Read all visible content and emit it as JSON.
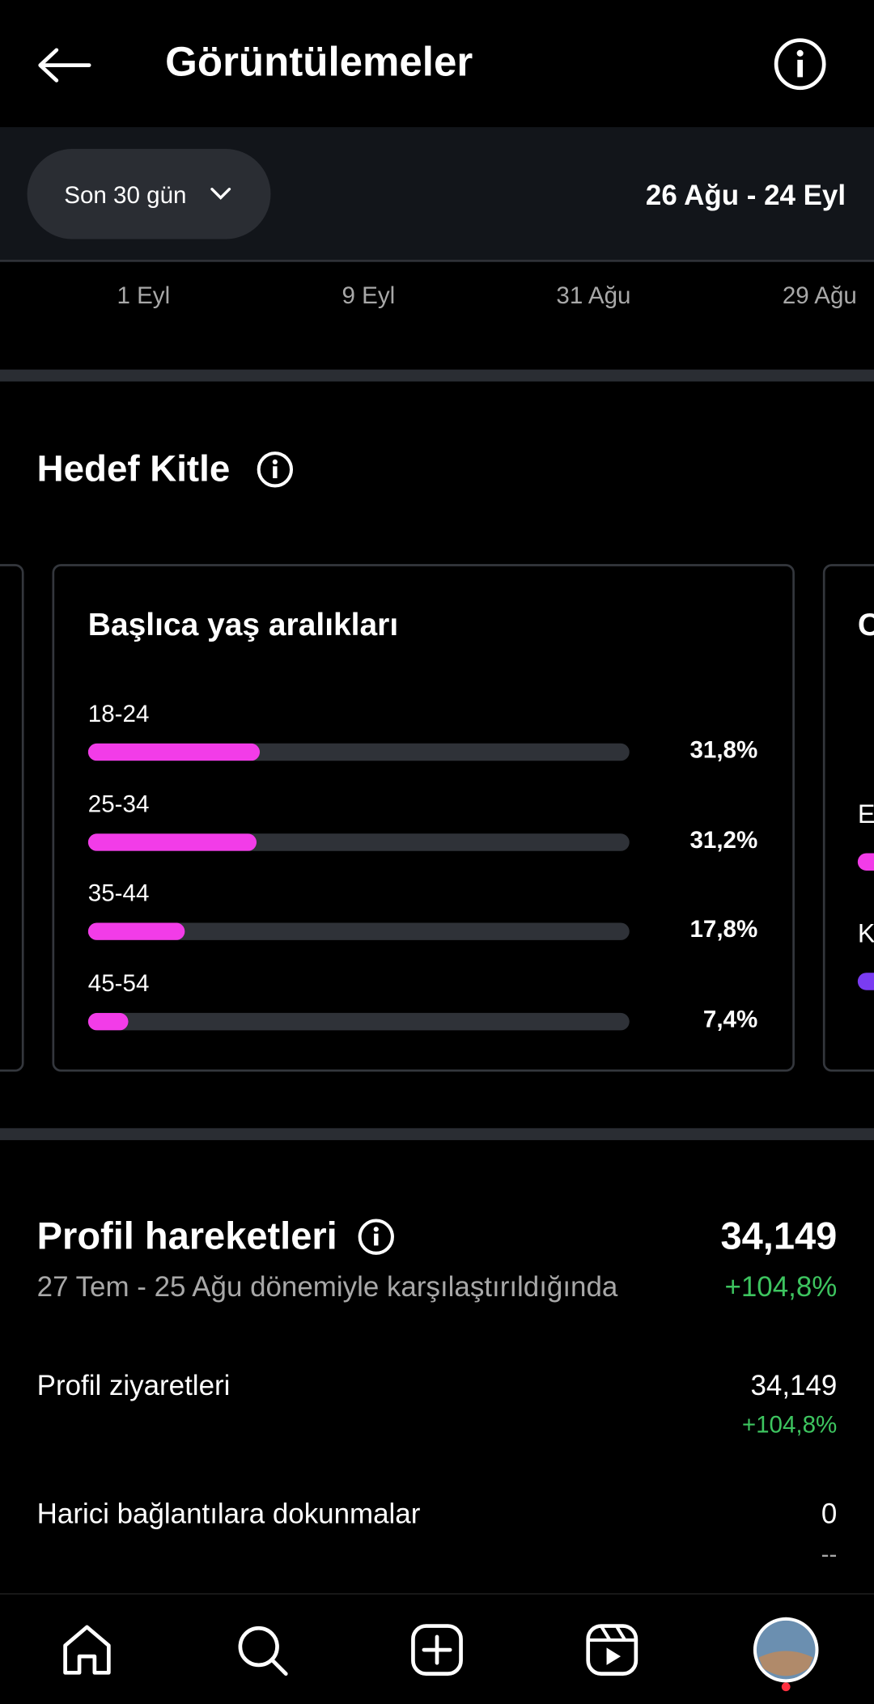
{
  "header": {
    "title": "Görüntülemeler"
  },
  "filter": {
    "period": "Son 30 gün",
    "date_range": "26 Ağu - 24 Eyl"
  },
  "timeline": {
    "labels": [
      "1 Eyl",
      "9 Eyl",
      "31 Ağu",
      "29 Ağu"
    ]
  },
  "audience": {
    "title": "Hedef Kitle",
    "age_card": {
      "chart_data": {
        "type": "bar",
        "title": "Başlıca yaş aralıkları",
        "categories": [
          "18-24",
          "25-34",
          "35-44",
          "45-54"
        ],
        "values": [
          31.8,
          31.2,
          17.8,
          7.4
        ],
        "value_labels": [
          "31,8%",
          "31,2%",
          "17,8%",
          "7,4%"
        ],
        "xlim": [
          0,
          100
        ],
        "color": "#f23ce8"
      }
    },
    "next_card": {
      "title": "C",
      "items": [
        "E",
        "K"
      ]
    }
  },
  "profile_activity": {
    "title": "Profil hareketleri",
    "total": "34,149",
    "comparison": "27 Tem - 25 Ağu dönemiyle karşılaştırıldığında",
    "change": "+104,8%",
    "rows": [
      {
        "label": "Profil ziyaretleri",
        "value": "34,149",
        "change": "+104,8%"
      },
      {
        "label": "Harici bağlantılara dokunmalar",
        "value": "0",
        "change": "--"
      }
    ]
  }
}
